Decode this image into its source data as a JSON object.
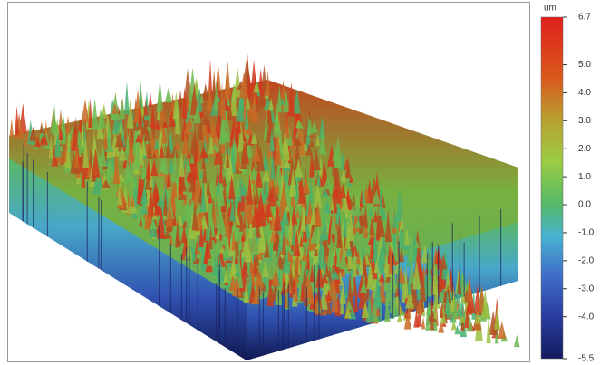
{
  "chart_data": {
    "type": "surface3d",
    "colorbar": {
      "label": "um",
      "clim": [
        -5.5,
        6.7
      ],
      "ticks": [
        6.7,
        {
          "value": 5,
          "label": "5.0"
        },
        {
          "value": 4,
          "label": "4.0"
        },
        {
          "value": 3,
          "label": "3.0"
        },
        {
          "value": 2,
          "label": "2.0"
        },
        {
          "value": 1,
          "label": "1.0"
        },
        {
          "value": 0,
          "label": "0.0"
        },
        {
          "value": -1,
          "label": "-1.0"
        },
        {
          "value": -2,
          "label": "-2.0"
        },
        {
          "value": -3,
          "label": "-3.0"
        },
        {
          "value": -4,
          "label": "-4.0"
        },
        -5.5
      ]
    }
  }
}
